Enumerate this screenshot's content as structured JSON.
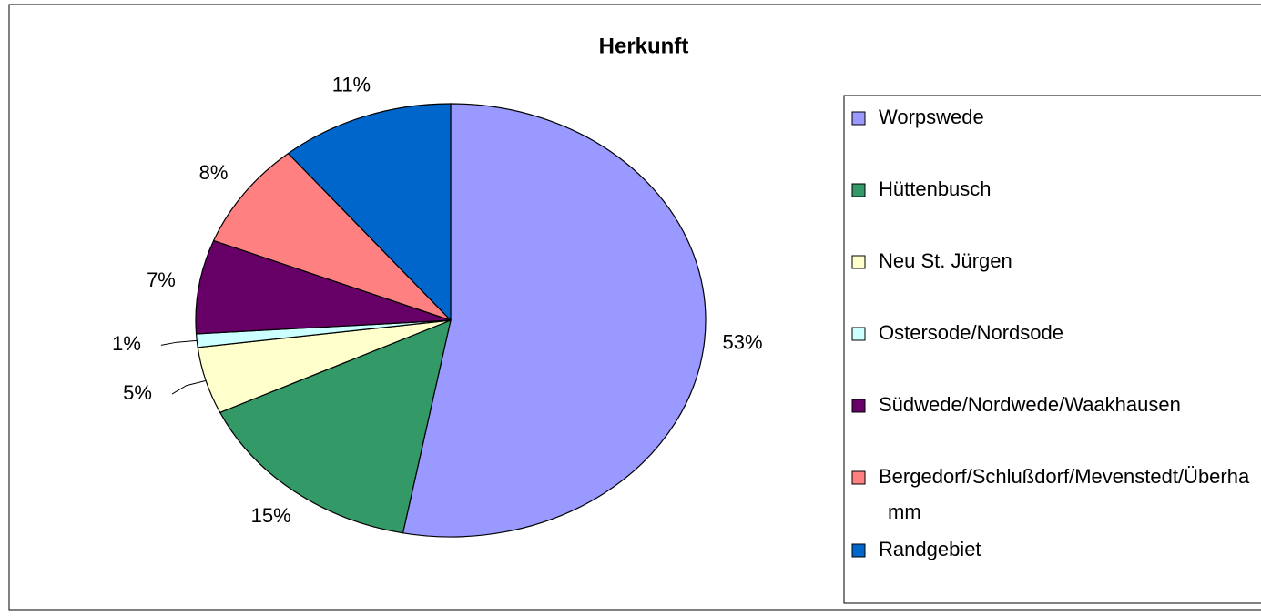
{
  "chart_data": {
    "type": "pie",
    "title": "Herkunft",
    "categories": [
      "Worpswede",
      "Hüttenbusch",
      "Neu St. Jürgen",
      "Ostersode/Nordsode",
      "Südwede/Nordwede/Waakhausen",
      "Bergedorf/Schlußdorf/Mevenstedt/Überhamm",
      "Randgebiet"
    ],
    "values": [
      53,
      15,
      5,
      1,
      7,
      8,
      11
    ],
    "value_labels": [
      "53%",
      "15%",
      "5%",
      "1%",
      "7%",
      "8%",
      "11%"
    ],
    "colors": [
      "#9999ff",
      "#339966",
      "#ffffcc",
      "#ccffff",
      "#660066",
      "#ff8080",
      "#0066cc"
    ],
    "legend": "right"
  }
}
